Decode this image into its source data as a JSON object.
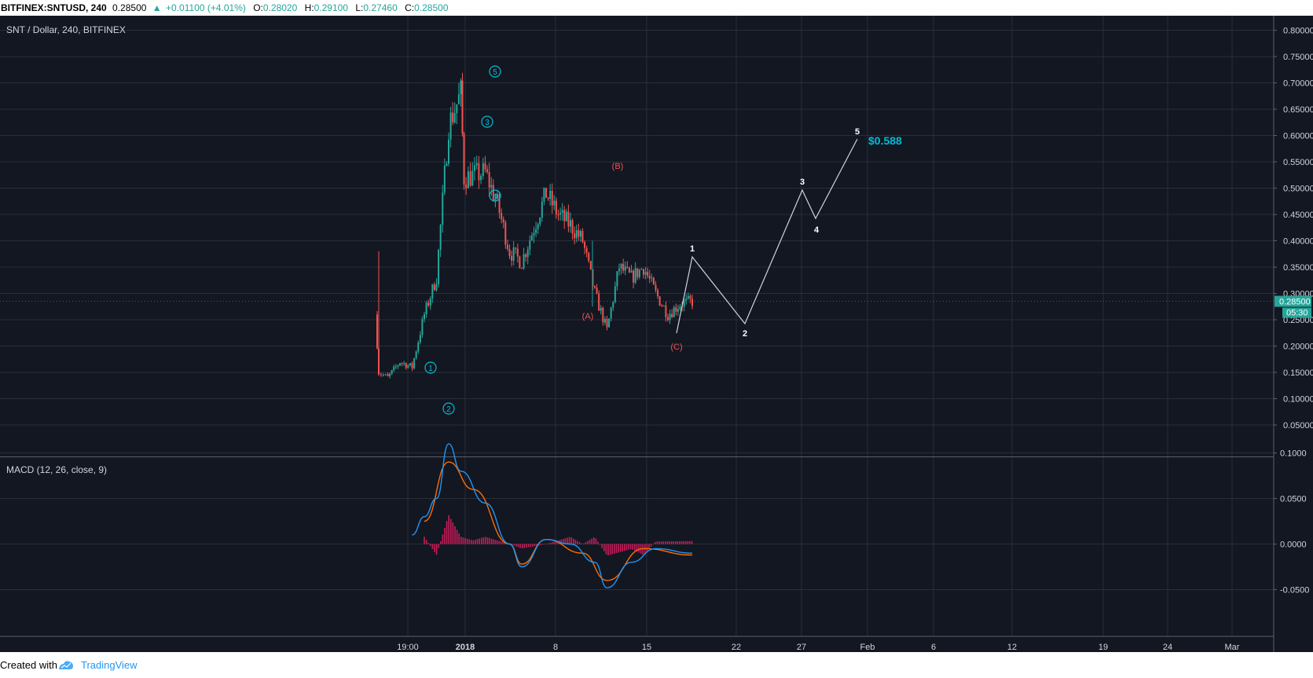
{
  "header": {
    "symbol": "BITFINEX:SNTUSD, 240",
    "last": "0.28500",
    "change": "+0.01100 (+4.01%)",
    "o_label": "O:",
    "o": "0.28020",
    "h_label": "H:",
    "h": "0.29100",
    "l_label": "L:",
    "l": "0.27460",
    "c_label": "C:",
    "c": "0.28500"
  },
  "legend": {
    "main": "SNT / Dollar, 240, BITFINEX",
    "macd": "MACD (12, 26, close, 9)"
  },
  "price_axis": {
    "ticks": [
      "0.80000",
      "0.75000",
      "0.70000",
      "0.65000",
      "0.60000",
      "0.55000",
      "0.50000",
      "0.45000",
      "0.40000",
      "0.35000",
      "0.30000",
      "0.25000",
      "0.20000",
      "0.15000",
      "0.10000",
      "0.05000"
    ],
    "last_price_label": "0.28500",
    "countdown": "05:30"
  },
  "macd_axis": {
    "ticks": [
      "0.1000",
      "0.0500",
      "0.0000",
      "-0.0500"
    ]
  },
  "time_axis": {
    "ticks": [
      "19:00",
      "2018",
      "8",
      "15",
      "22",
      "27",
      "Feb",
      "6",
      "12",
      "19",
      "24",
      "Mar"
    ]
  },
  "annotations": {
    "impulse_waves": [
      "1",
      "2",
      "3",
      "4",
      "5"
    ],
    "correction_waves": [
      "(A)",
      "(B)",
      "(C)"
    ],
    "projection_waves": [
      "1",
      "2",
      "3",
      "4",
      "5"
    ],
    "target": "$0.588"
  },
  "footer": {
    "created": "Created with",
    "brand": "TradingView"
  },
  "colors": {
    "background": "#131722",
    "grid": "#2a2e39",
    "up": "#26a69a",
    "down": "#ef5350",
    "macd_line": "#2196f3",
    "signal_line": "#ff6d00",
    "histogram": "#e91e63",
    "impulse": "#00bcd4",
    "correction": "#ef5350",
    "projection": "#ffffff"
  },
  "chart_data": {
    "type": "candlestick",
    "symbol": "SNTUSD",
    "timeframe": "240",
    "ylim": [
      0.05,
      0.8
    ],
    "close_path": [
      {
        "date": "2017-12-29",
        "close": 0.26
      },
      {
        "date": "2017-12-29",
        "close": 0.15
      },
      {
        "date": "2017-12-30",
        "close": 0.14
      },
      {
        "date": "2017-12-31",
        "close": 0.17
      },
      {
        "date": "2018-01-01",
        "close": 0.16
      },
      {
        "date": "2018-01-02",
        "close": 0.26
      },
      {
        "date": "2018-01-03",
        "close": 0.33
      },
      {
        "date": "2018-01-04",
        "close": 0.62
      },
      {
        "date": "2018-01-05",
        "close": 0.68
      },
      {
        "date": "2018-01-05",
        "close": 0.52
      },
      {
        "date": "2018-01-07",
        "close": 0.53
      },
      {
        "date": "2018-01-08",
        "close": 0.47
      },
      {
        "date": "2018-01-09",
        "close": 0.38
      },
      {
        "date": "2018-01-10",
        "close": 0.36
      },
      {
        "date": "2018-01-12",
        "close": 0.49
      },
      {
        "date": "2018-01-13",
        "close": 0.45
      },
      {
        "date": "2018-01-14",
        "close": 0.43
      },
      {
        "date": "2018-01-15",
        "close": 0.4
      },
      {
        "date": "2018-01-16",
        "close": 0.3
      },
      {
        "date": "2018-01-17",
        "close": 0.23
      },
      {
        "date": "2018-01-18",
        "close": 0.35
      },
      {
        "date": "2018-01-19",
        "close": 0.33
      },
      {
        "date": "2018-01-20",
        "close": 0.35
      },
      {
        "date": "2018-01-21",
        "close": 0.3
      },
      {
        "date": "2018-01-22",
        "close": 0.26
      },
      {
        "date": "2018-01-23",
        "close": 0.28
      },
      {
        "date": "2018-01-24",
        "close": 0.285
      }
    ],
    "macd_line": [
      {
        "date": "2018-01-01",
        "v": 0.01
      },
      {
        "date": "2018-01-02",
        "v": 0.03
      },
      {
        "date": "2018-01-03",
        "v": 0.05
      },
      {
        "date": "2018-01-04",
        "v": 0.11
      },
      {
        "date": "2018-01-05",
        "v": 0.08
      },
      {
        "date": "2018-01-07",
        "v": 0.045
      },
      {
        "date": "2018-01-09",
        "v": 0.0
      },
      {
        "date": "2018-01-10",
        "v": -0.025
      },
      {
        "date": "2018-01-12",
        "v": 0.005
      },
      {
        "date": "2018-01-14",
        "v": 0.0
      },
      {
        "date": "2018-01-16",
        "v": -0.02
      },
      {
        "date": "2018-01-17",
        "v": -0.048
      },
      {
        "date": "2018-01-19",
        "v": -0.02
      },
      {
        "date": "2018-01-21",
        "v": -0.005
      },
      {
        "date": "2018-01-24",
        "v": -0.01
      }
    ],
    "signal_line": [
      {
        "date": "2018-01-02",
        "v": 0.025
      },
      {
        "date": "2018-01-04",
        "v": 0.09
      },
      {
        "date": "2018-01-06",
        "v": 0.06
      },
      {
        "date": "2018-01-09",
        "v": 0.0
      },
      {
        "date": "2018-01-10",
        "v": -0.022
      },
      {
        "date": "2018-01-12",
        "v": 0.005
      },
      {
        "date": "2018-01-15",
        "v": -0.01
      },
      {
        "date": "2018-01-17",
        "v": -0.04
      },
      {
        "date": "2018-01-20",
        "v": -0.005
      },
      {
        "date": "2018-01-24",
        "v": -0.012
      }
    ],
    "projection": [
      {
        "label": "2",
        "price": 0.245
      },
      {
        "label": "3",
        "price": 0.495
      },
      {
        "label": "4",
        "price": 0.44
      },
      {
        "label": "5",
        "price": 0.588
      }
    ]
  }
}
